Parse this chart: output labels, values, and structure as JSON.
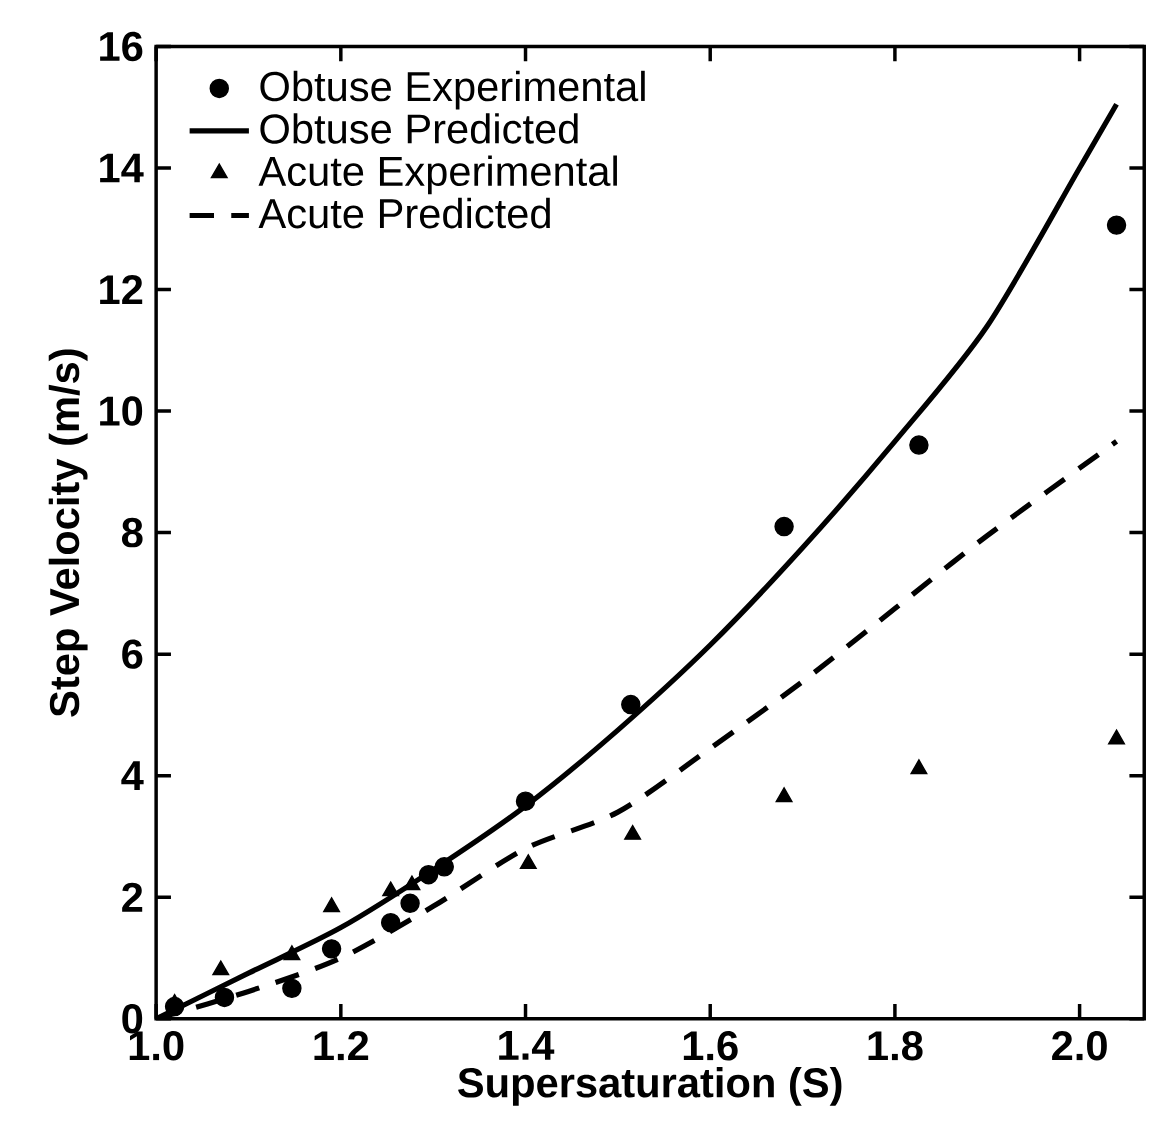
{
  "chart_data": {
    "type": "scatter",
    "xlabel": "Supersaturation (S)",
    "ylabel": "Step Velocity (m/s)",
    "xlim": [
      1.0,
      2.07
    ],
    "ylim": [
      0,
      16
    ],
    "xticks": [
      {
        "value": 1.0,
        "label": "1.0"
      },
      {
        "value": 1.2,
        "label": "1.2"
      },
      {
        "value": 1.4,
        "label": "1.4"
      },
      {
        "value": 1.6,
        "label": "1.6"
      },
      {
        "value": 1.8,
        "label": "1.8"
      },
      {
        "value": 2.0,
        "label": "2.0"
      }
    ],
    "yticks": [
      0,
      2,
      4,
      6,
      8,
      10,
      12,
      14,
      16
    ],
    "legend": "top left",
    "grid": false,
    "series": [
      {
        "name": "Obtuse Experimental",
        "marker": "circle",
        "color": "#000000",
        "x": [
          1.02,
          1.074,
          1.147,
          1.19,
          1.254,
          1.275,
          1.295,
          1.312,
          1.4,
          1.514,
          1.68,
          1.826,
          2.04
        ],
        "values": [
          0.2,
          0.35,
          0.5,
          1.15,
          1.58,
          1.9,
          2.37,
          2.5,
          3.58,
          5.17,
          8.1,
          9.44,
          13.06
        ]
      },
      {
        "name": "Obtuse Predicted",
        "type": "line",
        "line_style": "solid",
        "color": "#000000",
        "x": [
          1.0,
          1.1,
          1.2,
          1.3,
          1.4,
          1.5,
          1.6,
          1.7,
          1.8,
          1.9,
          2.0,
          2.04
        ],
        "values": [
          0,
          0.75,
          1.5,
          2.45,
          3.5,
          4.75,
          6.15,
          7.75,
          9.5,
          11.4,
          14.0,
          15.05
        ]
      },
      {
        "name": "Acute Experimental",
        "marker": "triangle",
        "color": "#000000",
        "x": [
          1.02,
          1.07,
          1.147,
          1.19,
          1.254,
          1.277,
          1.403,
          1.516,
          1.68,
          1.826,
          2.04
        ],
        "values": [
          0.25,
          0.8,
          1.05,
          1.84,
          2.1,
          2.2,
          2.55,
          3.03,
          3.65,
          4.11,
          4.6
        ]
      },
      {
        "name": "Acute Predicted",
        "type": "line",
        "line_style": "dashed",
        "color": "#000000",
        "x": [
          1.0,
          1.1,
          1.2,
          1.3,
          1.4,
          1.5,
          1.6,
          1.7,
          1.8,
          1.9,
          2.04
        ],
        "values": [
          0,
          0.45,
          1.0,
          1.85,
          2.8,
          3.4,
          4.45,
          5.55,
          6.75,
          7.95,
          9.5
        ]
      }
    ]
  }
}
